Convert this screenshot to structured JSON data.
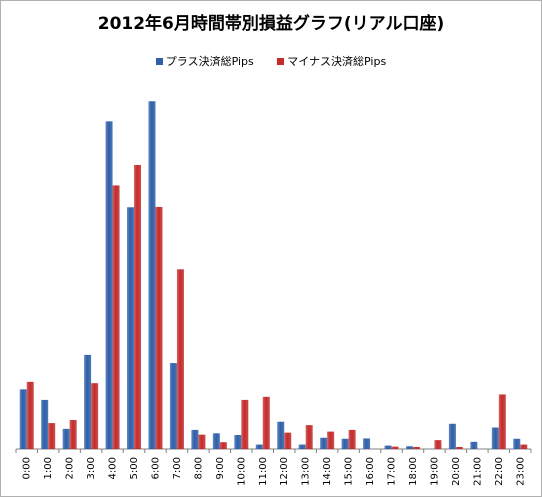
{
  "chart_data": {
    "type": "bar",
    "title": "2012年6月時間帯別損益グラフ(リアル口座)",
    "categories": [
      "0:00",
      "1:00",
      "2:00",
      "3:00",
      "4:00",
      "5:00",
      "6:00",
      "7:00",
      "8:00",
      "9:00",
      "10:00",
      "11:00",
      "12:00",
      "13:00",
      "14:00",
      "15:00",
      "16:00",
      "17:00",
      "18:00",
      "19:00",
      "20:00",
      "21:00",
      "22:00",
      "23:00"
    ],
    "series": [
      {
        "name": "プラス決済総Pips",
        "color": "#2e5fa8",
        "values": [
          17.5,
          14.4,
          5.9,
          27.6,
          96.1,
          70.9,
          102.0,
          25.2,
          5.6,
          4.6,
          4.1,
          1.3,
          8.0,
          1.3,
          3.3,
          3.0,
          3.1,
          1.0,
          0.8,
          0,
          7.4,
          2.1,
          6.3,
          3.0
        ]
      },
      {
        "name": "マイナス決済総Pips",
        "color": "#c42b2b",
        "values": [
          19.7,
          7.6,
          8.5,
          19.3,
          77.3,
          83.3,
          71.0,
          52.7,
          4.2,
          2.0,
          14.4,
          15.3,
          4.8,
          7.0,
          5.1,
          5.6,
          0,
          0.7,
          0.6,
          2.6,
          0.6,
          0,
          16.0,
          1.3
        ]
      }
    ],
    "ylim": [
      0,
      105
    ],
    "grid": false,
    "legend_position": "top"
  }
}
